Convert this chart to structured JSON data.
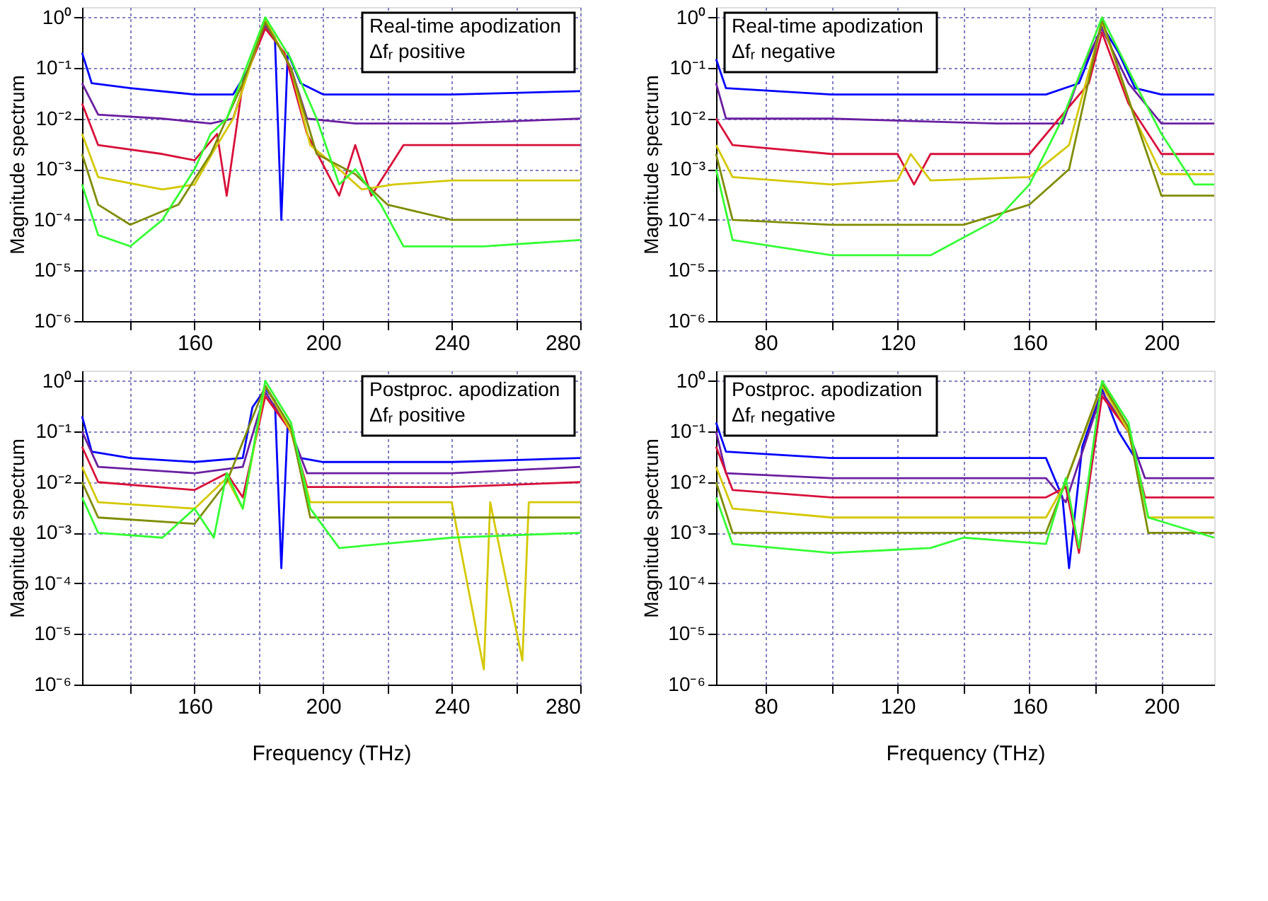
{
  "chart_data": [
    {
      "type": "line",
      "ylabel": "Magnitude spectrum",
      "log": true,
      "grid": true,
      "xlim": [
        125,
        280
      ],
      "xticks": [
        {
          "value": 140,
          "label": null
        },
        160,
        {
          "value": 180,
          "label": null
        },
        200,
        {
          "value": 220,
          "label": null
        },
        240,
        {
          "value": 260,
          "label": null
        },
        280
      ],
      "ylim": [
        1e-06,
        1.6
      ],
      "yticks": [
        {
          "value": 1e-06,
          "label": "10⁻⁶"
        },
        {
          "value": 1e-05,
          "label": "10⁻⁵"
        },
        {
          "value": 0.0001,
          "label": "10⁻⁴"
        },
        {
          "value": 0.001,
          "label": "10⁻³"
        },
        {
          "value": 0.01,
          "label": "10⁻²"
        },
        {
          "value": 0.1,
          "label": "10⁻¹"
        },
        {
          "value": 1,
          "label": "10⁰"
        }
      ],
      "annotations": [
        "Real-time apodization",
        "Δfᵣ positive"
      ],
      "series": [
        {
          "color": "#0000ff",
          "x": [
            125,
            128,
            140,
            160,
            172,
            177,
            182,
            185,
            187,
            189,
            193,
            200,
            240,
            280
          ],
          "values": [
            0.2,
            0.05,
            0.04,
            0.03,
            0.03,
            0.1,
            0.8,
            0.4,
            0.0001,
            0.2,
            0.05,
            0.03,
            0.03,
            0.035
          ]
        },
        {
          "color": "#6a1fa0",
          "x": [
            125,
            130,
            150,
            165,
            172,
            177,
            182,
            186,
            190,
            195,
            210,
            240,
            280
          ],
          "values": [
            0.05,
            0.012,
            0.01,
            0.008,
            0.01,
            0.1,
            0.7,
            0.3,
            0.1,
            0.01,
            0.008,
            0.008,
            0.01
          ]
        },
        {
          "color": "#d8103a",
          "x": [
            125,
            130,
            150,
            160,
            167,
            170,
            175,
            182,
            188,
            195,
            205,
            210,
            215,
            225,
            280
          ],
          "values": [
            0.02,
            0.003,
            0.002,
            0.0015,
            0.005,
            0.0003,
            0.05,
            0.6,
            0.2,
            0.005,
            0.0003,
            0.003,
            0.0003,
            0.003,
            0.003
          ]
        },
        {
          "color": "#d4c800",
          "x": [
            125,
            130,
            150,
            160,
            167,
            172,
            182,
            190,
            196,
            205,
            212,
            222,
            240,
            280
          ],
          "values": [
            0.005,
            0.0007,
            0.0004,
            0.0005,
            0.003,
            0.01,
            0.9,
            0.1,
            0.003,
            0.001,
            0.0004,
            0.0005,
            0.0006,
            0.0006
          ]
        },
        {
          "color": "#7f8c00",
          "x": [
            125,
            130,
            140,
            155,
            165,
            175,
            182,
            190,
            198,
            210,
            220,
            240,
            280
          ],
          "values": [
            0.002,
            0.0002,
            8e-05,
            0.0002,
            0.002,
            0.05,
            0.8,
            0.1,
            0.002,
            0.0008,
            0.0002,
            0.0001,
            0.0001
          ]
        },
        {
          "color": "#33ff33",
          "x": [
            125,
            130,
            140,
            150,
            160,
            165,
            170,
            182,
            190,
            198,
            205,
            210,
            218,
            225,
            250,
            280
          ],
          "values": [
            0.0005,
            5e-05,
            3e-05,
            0.0001,
            0.001,
            0.005,
            0.01,
            1.0,
            0.15,
            0.01,
            0.0005,
            0.001,
            0.0002,
            3e-05,
            3e-05,
            4e-05
          ]
        }
      ]
    },
    {
      "type": "line",
      "ylabel": "Magnitude spectrum",
      "log": true,
      "grid": true,
      "xlim": [
        65,
        216
      ],
      "xticks": [
        80,
        {
          "value": 100,
          "label": null
        },
        120,
        {
          "value": 140,
          "label": null
        },
        160,
        {
          "value": 180,
          "label": null
        },
        200
      ],
      "ylim": [
        1e-06,
        1.6
      ],
      "yticks": [
        {
          "value": 1e-06,
          "label": "10⁻⁶"
        },
        {
          "value": 1e-05,
          "label": "10⁻⁵"
        },
        {
          "value": 0.0001,
          "label": "10⁻⁴"
        },
        {
          "value": 0.001,
          "label": "10⁻³"
        },
        {
          "value": 0.01,
          "label": "10⁻²"
        },
        {
          "value": 0.1,
          "label": "10⁻¹"
        },
        {
          "value": 1,
          "label": "10⁰"
        }
      ],
      "annotations": [
        "Real-time apodization",
        "Δfᵣ negative"
      ],
      "series": [
        {
          "color": "#0000ff",
          "x": [
            65,
            68,
            100,
            140,
            165,
            175,
            182,
            187,
            192,
            200,
            216
          ],
          "values": [
            0.15,
            0.04,
            0.03,
            0.03,
            0.03,
            0.05,
            0.7,
            0.2,
            0.04,
            0.03,
            0.03
          ]
        },
        {
          "color": "#6a1fa0",
          "x": [
            65,
            68,
            100,
            150,
            170,
            176,
            182,
            190,
            200,
            216
          ],
          "values": [
            0.05,
            0.01,
            0.01,
            0.008,
            0.008,
            0.1,
            0.6,
            0.05,
            0.008,
            0.008
          ]
        },
        {
          "color": "#d8103a",
          "x": [
            65,
            70,
            100,
            120,
            125,
            130,
            160,
            178,
            182,
            190,
            200,
            216
          ],
          "values": [
            0.01,
            0.003,
            0.002,
            0.002,
            0.0005,
            0.002,
            0.002,
            0.05,
            0.5,
            0.02,
            0.002,
            0.002
          ]
        },
        {
          "color": "#d4c800",
          "x": [
            65,
            70,
            100,
            120,
            124,
            130,
            160,
            172,
            182,
            192,
            200,
            216
          ],
          "values": [
            0.003,
            0.0007,
            0.0005,
            0.0006,
            0.002,
            0.0006,
            0.0007,
            0.003,
            0.8,
            0.01,
            0.0008,
            0.0008
          ]
        },
        {
          "color": "#7f8c00",
          "x": [
            65,
            70,
            100,
            140,
            160,
            172,
            182,
            192,
            200,
            216
          ],
          "values": [
            0.002,
            0.0001,
            8e-05,
            8e-05,
            0.0002,
            0.001,
            0.9,
            0.01,
            0.0003,
            0.0003
          ]
        },
        {
          "color": "#33ff33",
          "x": [
            65,
            70,
            100,
            130,
            150,
            160,
            170,
            182,
            192,
            200,
            210,
            216
          ],
          "values": [
            0.001,
            4e-05,
            2e-05,
            2e-05,
            0.0001,
            0.0005,
            0.01,
            1.0,
            0.05,
            0.005,
            0.0005,
            0.0005
          ]
        }
      ]
    },
    {
      "type": "line",
      "xlabel": "Frequency (THz)",
      "ylabel": "Magnitude spectrum",
      "log": true,
      "grid": true,
      "xlim": [
        125,
        280
      ],
      "xticks": [
        {
          "value": 140,
          "label": null
        },
        160,
        {
          "value": 180,
          "label": null
        },
        200,
        {
          "value": 220,
          "label": null
        },
        240,
        {
          "value": 260,
          "label": null
        },
        280
      ],
      "ylim": [
        1e-06,
        1.6
      ],
      "yticks": [
        {
          "value": 1e-06,
          "label": "10⁻⁶"
        },
        {
          "value": 1e-05,
          "label": "10⁻⁵"
        },
        {
          "value": 0.0001,
          "label": "10⁻⁴"
        },
        {
          "value": 0.001,
          "label": "10⁻³"
        },
        {
          "value": 0.01,
          "label": "10⁻²"
        },
        {
          "value": 0.1,
          "label": "10⁻¹"
        },
        {
          "value": 1,
          "label": "10⁰"
        }
      ],
      "annotations": [
        "Postproc. apodization",
        "Δfᵣ positive"
      ],
      "series": [
        {
          "color": "#0000ff",
          "x": [
            125,
            128,
            140,
            160,
            175,
            178,
            182,
            185,
            187,
            189,
            193,
            200,
            240,
            280
          ],
          "values": [
            0.2,
            0.04,
            0.03,
            0.025,
            0.03,
            0.3,
            0.7,
            0.4,
            0.0002,
            0.15,
            0.03,
            0.025,
            0.025,
            0.03
          ]
        },
        {
          "color": "#6a1fa0",
          "x": [
            125,
            130,
            160,
            175,
            182,
            190,
            195,
            240,
            280
          ],
          "values": [
            0.1,
            0.02,
            0.015,
            0.02,
            0.6,
            0.1,
            0.015,
            0.015,
            0.02
          ]
        },
        {
          "color": "#d8103a",
          "x": [
            125,
            130,
            160,
            170,
            175,
            182,
            190,
            195,
            240,
            280
          ],
          "values": [
            0.05,
            0.01,
            0.007,
            0.015,
            0.005,
            0.5,
            0.1,
            0.008,
            0.008,
            0.01
          ]
        },
        {
          "color": "#d4c800",
          "x": [
            125,
            130,
            160,
            170,
            175,
            182,
            190,
            196,
            240,
            250,
            252,
            262,
            264,
            280
          ],
          "values": [
            0.02,
            0.004,
            0.003,
            0.012,
            0.003,
            0.8,
            0.1,
            0.004,
            0.004,
            2e-06,
            0.004,
            3e-06,
            0.004,
            0.004
          ]
        },
        {
          "color": "#7f8c00",
          "x": [
            125,
            130,
            160,
            170,
            182,
            190,
            196,
            240,
            280
          ],
          "values": [
            0.01,
            0.002,
            0.0015,
            0.01,
            0.8,
            0.12,
            0.002,
            0.002,
            0.002
          ]
        },
        {
          "color": "#33ff33",
          "x": [
            125,
            130,
            150,
            160,
            166,
            170,
            175,
            182,
            190,
            196,
            205,
            240,
            280
          ],
          "values": [
            0.005,
            0.001,
            0.0008,
            0.003,
            0.0008,
            0.015,
            0.003,
            1.0,
            0.15,
            0.003,
            0.0005,
            0.0008,
            0.001
          ]
        }
      ]
    },
    {
      "type": "line",
      "xlabel": "Frequency (THz)",
      "ylabel": "Magnitude spectrum",
      "log": true,
      "grid": true,
      "xlim": [
        65,
        216
      ],
      "xticks": [
        80,
        {
          "value": 100,
          "label": null
        },
        120,
        {
          "value": 140,
          "label": null
        },
        160,
        {
          "value": 180,
          "label": null
        },
        200
      ],
      "ylim": [
        1e-06,
        1.6
      ],
      "yticks": [
        {
          "value": 1e-06,
          "label": "10⁻⁶"
        },
        {
          "value": 1e-05,
          "label": "10⁻⁵"
        },
        {
          "value": 0.0001,
          "label": "10⁻⁴"
        },
        {
          "value": 0.001,
          "label": "10⁻³"
        },
        {
          "value": 0.01,
          "label": "10⁻²"
        },
        {
          "value": 0.1,
          "label": "10⁻¹"
        },
        {
          "value": 1,
          "label": "10⁰"
        }
      ],
      "annotations": [
        "Postproc. apodization",
        "Δfᵣ negative"
      ],
      "series": [
        {
          "color": "#0000ff",
          "x": [
            65,
            68,
            100,
            165,
            170,
            172,
            176,
            182,
            187,
            192,
            216
          ],
          "values": [
            0.15,
            0.04,
            0.03,
            0.03,
            0.005,
            0.0002,
            0.05,
            0.7,
            0.1,
            0.03,
            0.03
          ]
        },
        {
          "color": "#6a1fa0",
          "x": [
            65,
            68,
            100,
            165,
            171,
            182,
            190,
            195,
            216
          ],
          "values": [
            0.1,
            0.015,
            0.012,
            0.012,
            0.004,
            0.6,
            0.1,
            0.012,
            0.012
          ]
        },
        {
          "color": "#d8103a",
          "x": [
            65,
            70,
            100,
            165,
            171,
            175,
            182,
            190,
            195,
            216
          ],
          "values": [
            0.05,
            0.007,
            0.005,
            0.005,
            0.008,
            0.0004,
            0.5,
            0.1,
            0.005,
            0.005
          ]
        },
        {
          "color": "#d4c800",
          "x": [
            65,
            70,
            100,
            165,
            171,
            182,
            190,
            196,
            216
          ],
          "values": [
            0.02,
            0.003,
            0.002,
            0.002,
            0.01,
            0.8,
            0.1,
            0.002,
            0.002
          ]
        },
        {
          "color": "#7f8c00",
          "x": [
            65,
            70,
            100,
            165,
            171,
            182,
            190,
            196,
            216
          ],
          "values": [
            0.01,
            0.001,
            0.001,
            0.001,
            0.01,
            0.9,
            0.12,
            0.001,
            0.001
          ]
        },
        {
          "color": "#33ff33",
          "x": [
            65,
            70,
            100,
            130,
            140,
            165,
            171,
            175,
            182,
            190,
            196,
            216
          ],
          "values": [
            0.005,
            0.0006,
            0.0004,
            0.0005,
            0.0008,
            0.0006,
            0.012,
            0.0005,
            1.0,
            0.15,
            0.002,
            0.0008
          ]
        }
      ]
    }
  ]
}
